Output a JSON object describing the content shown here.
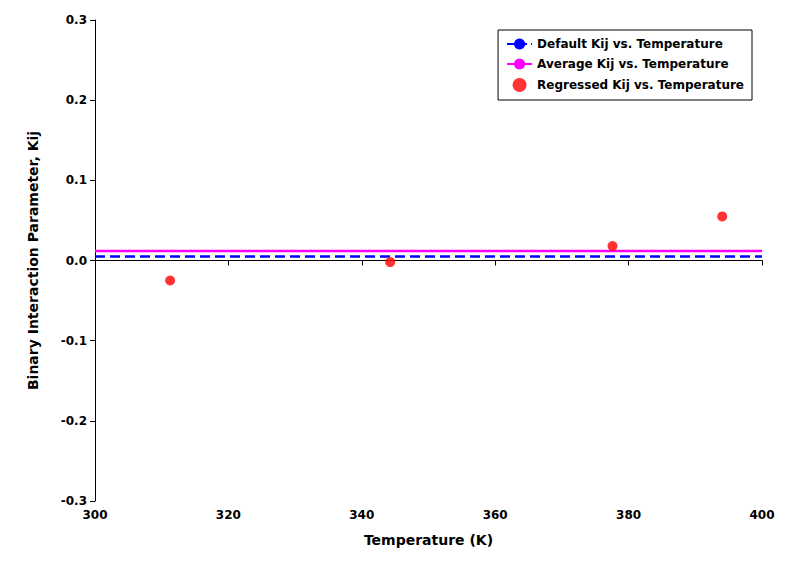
{
  "chart_data": {
    "type": "scatter",
    "xlabel": "Temperature (K)",
    "ylabel": "Binary Interaction Parameter, Kij",
    "xlim": [
      300,
      400
    ],
    "ylim": [
      -0.3,
      0.3
    ],
    "xticks": [
      300,
      320,
      340,
      360,
      380,
      400
    ],
    "yticks": [
      -0.3,
      -0.2,
      -0.1,
      {
        "value": 0,
        "label": "0.0"
      },
      0.1,
      0.2,
      0.3
    ],
    "grid": false,
    "legend": "upper right",
    "series": [
      {
        "name": "Default Kij vs. Temperature",
        "type": "hline",
        "color": "#0000FF",
        "line_style": "dashed",
        "values": [
          0.005
        ]
      },
      {
        "name": "Average Kij vs. Temperature",
        "type": "hline",
        "color": "#FF00FF",
        "line_style": "solid",
        "values": [
          0.012
        ]
      },
      {
        "name": "Regressed Kij vs. Temperature",
        "type": "scatter",
        "color": "#FF0000",
        "marker": "circle",
        "x": [
          311.26,
          344.26,
          377.59,
          394.04
        ],
        "values": [
          -0.025,
          -0.002,
          0.018,
          0.055
        ]
      }
    ]
  }
}
